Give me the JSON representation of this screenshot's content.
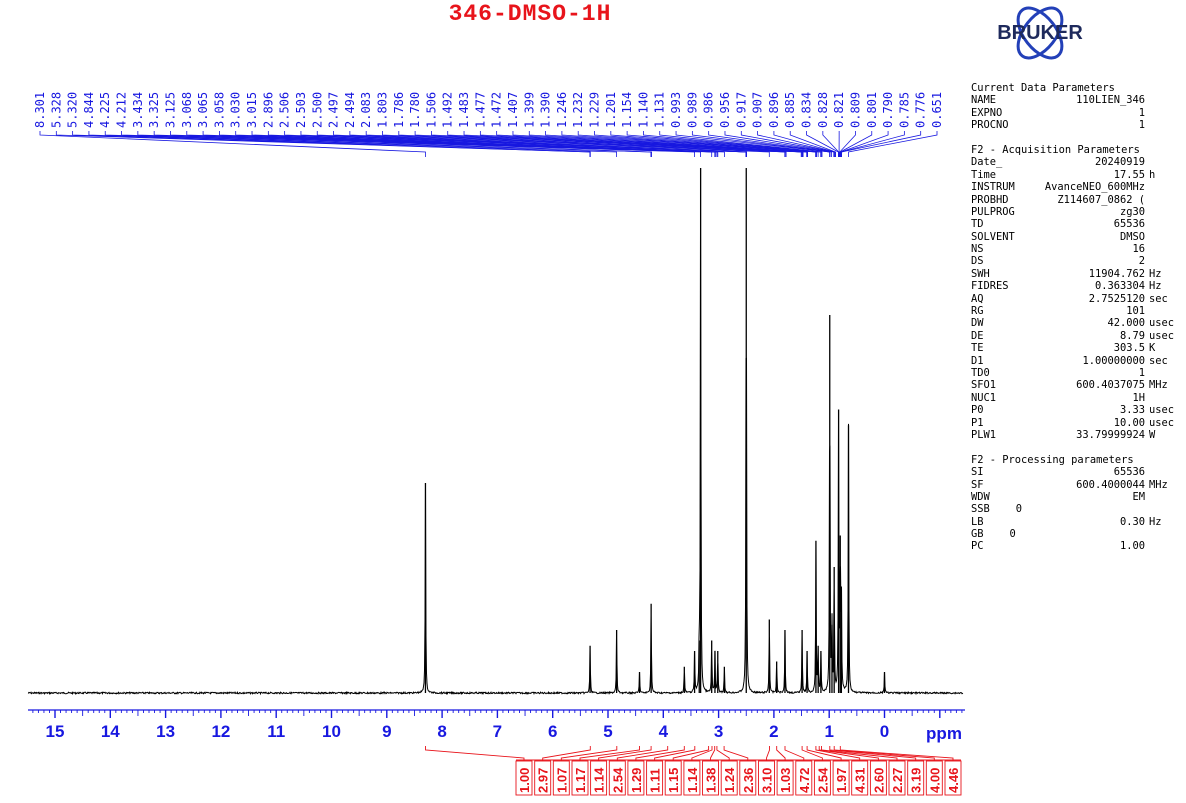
{
  "title": "346-DMSO-1H",
  "logo_text": "BRUKER",
  "params": {
    "sections": [
      {
        "title": "Current Data Parameters",
        "rows": [
          {
            "key": "NAME",
            "value": "110LIEN_346",
            "unit": ""
          },
          {
            "key": "EXPNO",
            "value": "1",
            "unit": ""
          },
          {
            "key": "PROCNO",
            "value": "1",
            "unit": ""
          }
        ]
      },
      {
        "title": "F2 - Acquisition Parameters",
        "rows": [
          {
            "key": "Date_",
            "value": "20240919",
            "unit": ""
          },
          {
            "key": "Time",
            "value": "17.55",
            "unit": "h"
          },
          {
            "key": "INSTRUM",
            "value": "AvanceNEO_600MHz",
            "unit": ""
          },
          {
            "key": "PROBHD",
            "value": "Z114607_0862 (",
            "unit": ""
          },
          {
            "key": "PULPROG",
            "value": "zg30",
            "unit": ""
          },
          {
            "key": "TD",
            "value": "65536",
            "unit": ""
          },
          {
            "key": "SOLVENT",
            "value": "DMSO",
            "unit": ""
          },
          {
            "key": "NS",
            "value": "16",
            "unit": ""
          },
          {
            "key": "DS",
            "value": "2",
            "unit": ""
          },
          {
            "key": "SWH",
            "value": "11904.762",
            "unit": "Hz"
          },
          {
            "key": "FIDRES",
            "value": "0.363304",
            "unit": "Hz"
          },
          {
            "key": "AQ",
            "value": "2.7525120",
            "unit": "sec"
          },
          {
            "key": "RG",
            "value": "101",
            "unit": ""
          },
          {
            "key": "DW",
            "value": "42.000",
            "unit": "usec"
          },
          {
            "key": "DE",
            "value": "8.79",
            "unit": "usec"
          },
          {
            "key": "TE",
            "value": "303.5",
            "unit": "K"
          },
          {
            "key": "D1",
            "value": "1.00000000",
            "unit": "sec"
          },
          {
            "key": "TD0",
            "value": "1",
            "unit": ""
          },
          {
            "key": "SFO1",
            "value": "600.4037075",
            "unit": "MHz"
          },
          {
            "key": "NUC1",
            "value": "1H",
            "unit": ""
          },
          {
            "key": "P0",
            "value": "3.33",
            "unit": "usec"
          },
          {
            "key": "P1",
            "value": "10.00",
            "unit": "usec"
          },
          {
            "key": "PLW1",
            "value": "33.79999924",
            "unit": "W"
          }
        ]
      },
      {
        "title": "F2 - Processing parameters",
        "rows": [
          {
            "key": "SI",
            "value": "65536",
            "unit": ""
          },
          {
            "key": "SF",
            "value": "600.4000044",
            "unit": "MHz"
          },
          {
            "key": "WDW",
            "value": "EM",
            "unit": ""
          },
          {
            "key": "SSB",
            "value": "0",
            "unit": "",
            "left": true
          },
          {
            "key": "LB",
            "value": "0.30",
            "unit": "Hz"
          },
          {
            "key": "GB",
            "value": "0",
            "unit": "",
            "left": true
          },
          {
            "key": "PC",
            "value": "1.00",
            "unit": ""
          }
        ]
      }
    ]
  },
  "chart_data": {
    "type": "line",
    "xlabel": "ppm",
    "xlim": [
      15.5,
      -1.4
    ],
    "x_reversed": true,
    "ticks": [
      15,
      14,
      13,
      12,
      11,
      10,
      9,
      8,
      7,
      6,
      5,
      4,
      3,
      2,
      1,
      0
    ],
    "peak_labels": [
      "8.301",
      "5.328",
      "5.320",
      "4.844",
      "4.225",
      "4.212",
      "3.434",
      "3.325",
      "3.125",
      "3.068",
      "3.065",
      "3.058",
      "3.030",
      "3.015",
      "2.896",
      "2.506",
      "2.503",
      "2.500",
      "2.497",
      "2.494",
      "2.083",
      "1.803",
      "1.786",
      "1.780",
      "1.506",
      "1.492",
      "1.483",
      "1.477",
      "1.472",
      "1.407",
      "1.399",
      "1.390",
      "1.246",
      "1.232",
      "1.229",
      "1.201",
      "1.154",
      "1.140",
      "1.131",
      "0.993",
      "0.989",
      "0.986",
      "0.956",
      "0.917",
      "0.907",
      "0.896",
      "0.885",
      "0.834",
      "0.828",
      "0.821",
      "0.809",
      "0.801",
      "0.790",
      "0.785",
      "0.776",
      "0.651"
    ],
    "peaks": [
      {
        "ppm": 8.301,
        "height": 0.4
      },
      {
        "ppm": 5.324,
        "height": 0.09
      },
      {
        "ppm": 4.844,
        "height": 0.12
      },
      {
        "ppm": 4.43,
        "height": 0.04
      },
      {
        "ppm": 4.22,
        "height": 0.17
      },
      {
        "ppm": 3.62,
        "height": 0.05
      },
      {
        "ppm": 3.434,
        "height": 0.08
      },
      {
        "ppm": 3.35,
        "height": 0.1
      },
      {
        "ppm": 3.325,
        "height": 1.0
      },
      {
        "ppm": 3.125,
        "height": 0.1
      },
      {
        "ppm": 3.066,
        "height": 0.08
      },
      {
        "ppm": 3.015,
        "height": 0.08
      },
      {
        "ppm": 2.896,
        "height": 0.05
      },
      {
        "ppm": 2.5,
        "height": 1.0
      },
      {
        "ppm": 2.083,
        "height": 0.14
      },
      {
        "ppm": 1.95,
        "height": 0.06
      },
      {
        "ppm": 1.8,
        "height": 0.12
      },
      {
        "ppm": 1.49,
        "height": 0.12
      },
      {
        "ppm": 1.4,
        "height": 0.08
      },
      {
        "ppm": 1.24,
        "height": 0.29
      },
      {
        "ppm": 1.2,
        "height": 0.09
      },
      {
        "ppm": 1.15,
        "height": 0.08
      },
      {
        "ppm": 0.99,
        "height": 0.72
      },
      {
        "ppm": 0.95,
        "height": 0.13
      },
      {
        "ppm": 0.91,
        "height": 0.24
      },
      {
        "ppm": 0.83,
        "height": 0.54
      },
      {
        "ppm": 0.8,
        "height": 0.3
      },
      {
        "ppm": 0.78,
        "height": 0.2
      },
      {
        "ppm": 0.651,
        "height": 0.51
      },
      {
        "ppm": 0.0,
        "height": 0.04
      }
    ],
    "integrals": [
      {
        "ppm": 8.3,
        "value": "1.00"
      },
      {
        "ppm": 5.32,
        "value": "2.97"
      },
      {
        "ppm": 4.84,
        "value": "1.07"
      },
      {
        "ppm": 4.43,
        "value": "1.17"
      },
      {
        "ppm": 4.22,
        "value": "1.14"
      },
      {
        "ppm": 3.92,
        "value": "2.54"
      },
      {
        "ppm": 3.62,
        "value": "1.29"
      },
      {
        "ppm": 3.43,
        "value": "1.11"
      },
      {
        "ppm": 3.18,
        "value": "1.15"
      },
      {
        "ppm": 3.12,
        "value": "1.14"
      },
      {
        "ppm": 3.07,
        "value": "1.38"
      },
      {
        "ppm": 3.03,
        "value": "1.24"
      },
      {
        "ppm": 2.9,
        "value": "2.36"
      },
      {
        "ppm": 2.08,
        "value": "3.10"
      },
      {
        "ppm": 1.95,
        "value": "1.03"
      },
      {
        "ppm": 1.8,
        "value": "4.72"
      },
      {
        "ppm": 1.49,
        "value": "2.54"
      },
      {
        "ppm": 1.4,
        "value": "1.97"
      },
      {
        "ppm": 1.24,
        "value": "4.31"
      },
      {
        "ppm": 1.18,
        "value": "2.60"
      },
      {
        "ppm": 1.14,
        "value": "2.27"
      },
      {
        "ppm": 0.99,
        "value": "3.19"
      },
      {
        "ppm": 0.91,
        "value": "4.00"
      },
      {
        "ppm": 0.8,
        "value": "4.46"
      }
    ],
    "colors": {
      "title": "#e8141b",
      "peak_labels": "#1818e0",
      "integrals": "#e8141b",
      "spectrum": "#000000",
      "axis": "#1818e0"
    }
  }
}
